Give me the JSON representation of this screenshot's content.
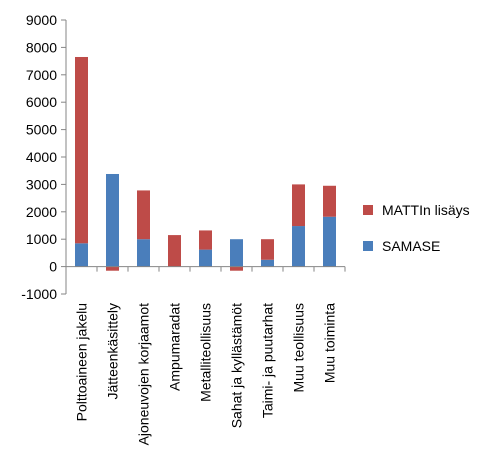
{
  "chart_data": {
    "type": "bar",
    "stacked": true,
    "categories": [
      "Polttoaineen jakelu",
      "Jätteenkäsittely",
      "Ajoneuvojen korjaamot",
      "Ampumaradat",
      "Metalliteollisuus",
      "Sahat ja kyllästämöt",
      "Taimi- ja puutarhat",
      "Muu teollisuus",
      "Muu toiminta"
    ],
    "series": [
      {
        "name": "SAMASE",
        "color": "#4a7ebb",
        "values": [
          850,
          3380,
          1000,
          0,
          620,
          1000,
          250,
          1480,
          1820
        ]
      },
      {
        "name": "MATTIn lisäys",
        "color": "#be4b48",
        "values": [
          6800,
          -150,
          1780,
          1150,
          700,
          -150,
          750,
          1520,
          1130
        ]
      }
    ],
    "ylim": [
      -1000,
      9000
    ],
    "yticks": [
      "-1000",
      "0",
      "1000",
      "2000",
      "3000",
      "4000",
      "5000",
      "6000",
      "7000",
      "8000",
      "9000"
    ],
    "ytick_values": [
      -1000,
      0,
      1000,
      2000,
      3000,
      4000,
      5000,
      6000,
      7000,
      8000,
      9000
    ],
    "grid": false,
    "legend_position": "right",
    "title": "",
    "xlabel": "",
    "ylabel": ""
  }
}
